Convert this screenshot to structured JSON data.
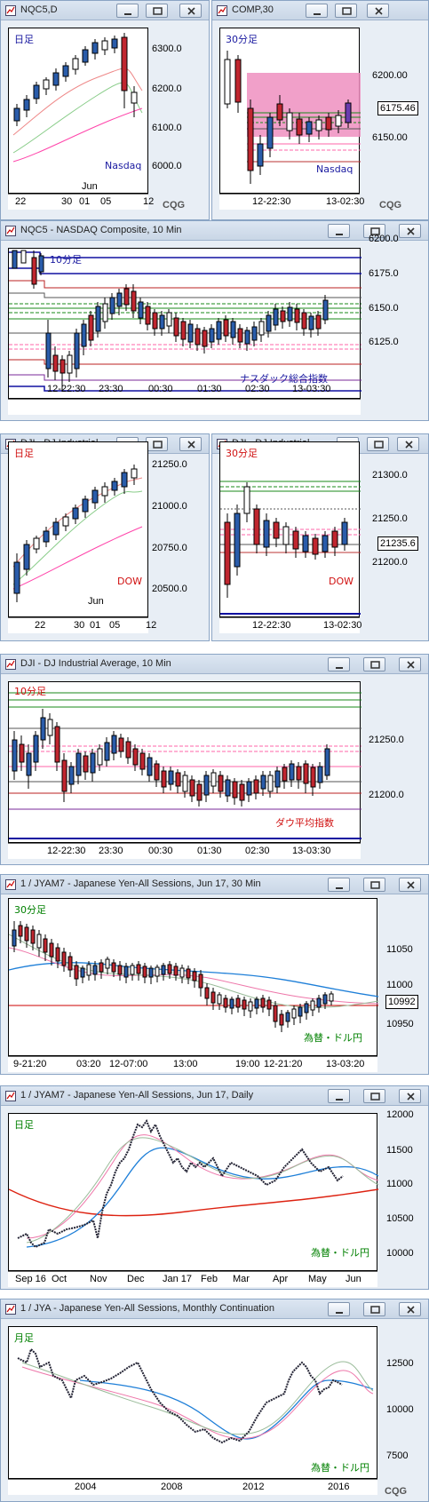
{
  "panels": {
    "nqc5_daily": {
      "title": "NQC5,D",
      "period": "日足",
      "instrument": "Nasdaq",
      "price_labels": [
        "6300.0",
        "6200.0",
        "6100.0",
        "6000.0"
      ],
      "x_labels": [
        "22",
        "30",
        "01",
        "05",
        "12"
      ],
      "month_label": "Jun",
      "watermark": "CQG"
    },
    "comp_30": {
      "title": "COMP,30",
      "period": "30分足",
      "instrument": "Nasdaq",
      "price_labels": [
        "6200.00",
        "6150.00"
      ],
      "last_value": "6175.46",
      "x_labels": [
        "12-22:30",
        "13-02:30"
      ],
      "watermark": "CQG"
    },
    "nqc5_10": {
      "title": "NQC5 - NASDAQ Composite, 10 Min",
      "period": "10分足",
      "instrument": "ナスダック総合指数",
      "price_labels": [
        "6200.0",
        "6175.0",
        "6150.0",
        "6125.0"
      ],
      "x_labels": [
        "12-22:30",
        "23:30",
        "00:30",
        "01:30",
        "02:30",
        "13-03:30"
      ]
    },
    "dji_daily": {
      "title": "DJI - DJ Industrial ...",
      "period": "日足",
      "instrument": "DOW",
      "price_labels": [
        "21250.0",
        "21000.0",
        "20750.0",
        "20500.0"
      ],
      "x_labels": [
        "22",
        "30",
        "01",
        "05",
        "12"
      ],
      "month_label": "Jun"
    },
    "dji_30": {
      "title": "DJI - DJ Industrial ...",
      "period": "30分足",
      "instrument": "DOW",
      "price_labels": [
        "21300.0",
        "21250.0",
        "21200.0"
      ],
      "last_value": "21235.6",
      "x_labels": [
        "12-22:30",
        "13-02:30"
      ]
    },
    "dji_10": {
      "title": "DJI - DJ Industrial Average, 10 Min",
      "period": "10分足",
      "instrument": "ダウ平均指数",
      "price_labels": [
        "21250.0",
        "21200.0"
      ],
      "x_labels": [
        "12-22:30",
        "23:30",
        "00:30",
        "01:30",
        "02:30",
        "13-03:30"
      ]
    },
    "jyam7_30": {
      "title": "1 / JYAM7 - Japanese Yen-All Sessions, Jun 17, 30 Min",
      "period": "30分足",
      "instrument": "為替・ドル円",
      "price_labels": [
        "11050",
        "11000",
        "10950"
      ],
      "last_value": "10992",
      "x_labels": [
        "9-21:20",
        "03:20",
        "12-07:00",
        "13:00",
        "19:00",
        "12-21:20",
        "13-03:20"
      ]
    },
    "jyam7_daily": {
      "title": "1 / JYAM7 - Japanese Yen-All Sessions, Jun 17, Daily",
      "period": "日足",
      "instrument": "為替・ドル円",
      "price_labels": [
        "12000",
        "11500",
        "11000",
        "10500",
        "10000"
      ],
      "x_labels": [
        "Sep 16",
        "Oct",
        "Nov",
        "Dec",
        "Jan 17",
        "Feb",
        "Mar",
        "Apr",
        "May",
        "Jun"
      ]
    },
    "jya_monthly": {
      "title": "1 / JYA - Japanese Yen-All Sessions, Monthly Continuation",
      "period": "月足",
      "instrument": "為替・ドル円",
      "price_labels": [
        "12500",
        "10000",
        "7500"
      ],
      "x_labels": [
        "2004",
        "2008",
        "2012",
        "2016"
      ],
      "watermark": "CQG"
    }
  },
  "colors": {
    "titlebar": "#c9d6e6",
    "frame": "#8aa4c4",
    "up_candle": "#2a5caa",
    "down_candle": "#c0262f",
    "period_blue": "#1a1aa0",
    "period_red": "#d01010",
    "period_green": "#008000",
    "pink_zone": "#ee8fc0"
  },
  "chart_data": [
    {
      "type": "candlestick",
      "title": "NQC5,D",
      "ylim": [
        5950,
        6350
      ],
      "close_estimates": [
        6120,
        6135,
        6165,
        6190,
        6215,
        6230,
        6255,
        6280,
        6300,
        6175,
        6140
      ]
    },
    {
      "type": "candlestick",
      "title": "COMP,30",
      "ylim": [
        6100,
        6240
      ],
      "last": 6175.46
    },
    {
      "type": "candlestick",
      "title": "NQC5 10 Min",
      "ylim": [
        6110,
        6210
      ]
    },
    {
      "type": "candlestick",
      "title": "DJI Daily",
      "ylim": [
        20450,
        21350
      ]
    },
    {
      "type": "candlestick",
      "title": "DJI 30",
      "ylim": [
        21150,
        21320
      ],
      "last": 21235.6
    },
    {
      "type": "candlestick",
      "title": "DJI 10 Min",
      "ylim": [
        21170,
        21290
      ]
    },
    {
      "type": "candlestick",
      "title": "JYAM7 30 Min",
      "ylim": [
        10930,
        11090
      ],
      "last": 10992
    },
    {
      "type": "candlestick",
      "title": "JYAM7 Daily",
      "ylim": [
        9850,
        12100
      ]
    },
    {
      "type": "candlestick",
      "title": "JYA Monthly",
      "ylim": [
        7000,
        13500
      ]
    }
  ]
}
